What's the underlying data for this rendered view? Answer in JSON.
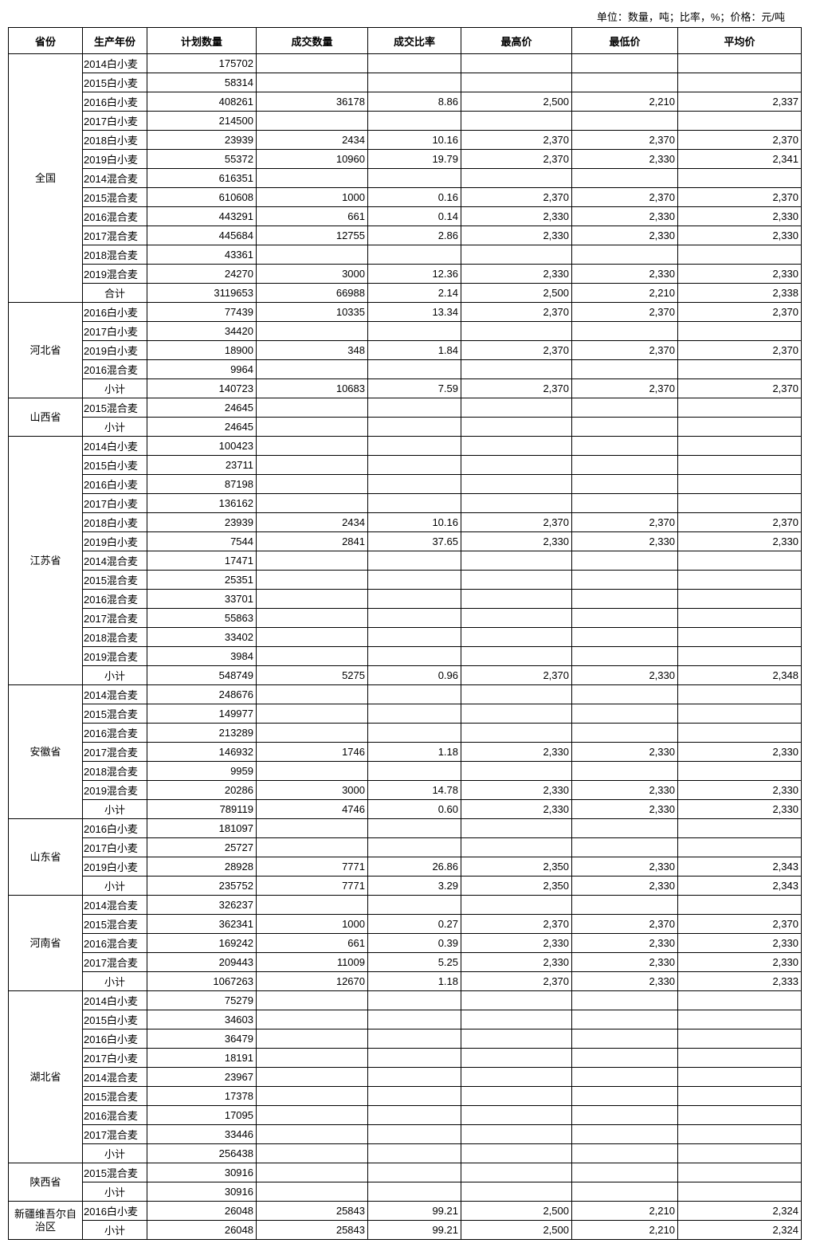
{
  "unit_note": "单位：数量，吨；比率，%；价格：元/吨",
  "headers": [
    "省份",
    "生产年份",
    "计划数量",
    "成交数量",
    "成交比率",
    "最高价",
    "最低价",
    "平均价"
  ],
  "groups": [
    {
      "province": "全国",
      "rows": [
        [
          "2014白小麦",
          "175702",
          "",
          "",
          "",
          "",
          ""
        ],
        [
          "2015白小麦",
          "58314",
          "",
          "",
          "",
          "",
          ""
        ],
        [
          "2016白小麦",
          "408261",
          "36178",
          "8.86",
          "2,500",
          "2,210",
          "2,337"
        ],
        [
          "2017白小麦",
          "214500",
          "",
          "",
          "",
          "",
          ""
        ],
        [
          "2018白小麦",
          "23939",
          "2434",
          "10.16",
          "2,370",
          "2,370",
          "2,370"
        ],
        [
          "2019白小麦",
          "55372",
          "10960",
          "19.79",
          "2,370",
          "2,330",
          "2,341"
        ],
        [
          "2014混合麦",
          "616351",
          "",
          "",
          "",
          "",
          ""
        ],
        [
          "2015混合麦",
          "610608",
          "1000",
          "0.16",
          "2,370",
          "2,370",
          "2,370"
        ],
        [
          "2016混合麦",
          "443291",
          "661",
          "0.14",
          "2,330",
          "2,330",
          "2,330"
        ],
        [
          "2017混合麦",
          "445684",
          "12755",
          "2.86",
          "2,330",
          "2,330",
          "2,330"
        ],
        [
          "2018混合麦",
          "43361",
          "",
          "",
          "",
          "",
          ""
        ],
        [
          "2019混合麦",
          "24270",
          "3000",
          "12.36",
          "2,330",
          "2,330",
          "2,330"
        ],
        [
          "合计",
          "3119653",
          "66988",
          "2.14",
          "2,500",
          "2,210",
          "2,338"
        ]
      ]
    },
    {
      "province": "河北省",
      "rows": [
        [
          "2016白小麦",
          "77439",
          "10335",
          "13.34",
          "2,370",
          "2,370",
          "2,370"
        ],
        [
          "2017白小麦",
          "34420",
          "",
          "",
          "",
          "",
          ""
        ],
        [
          "2019白小麦",
          "18900",
          "348",
          "1.84",
          "2,370",
          "2,370",
          "2,370"
        ],
        [
          "2016混合麦",
          "9964",
          "",
          "",
          "",
          "",
          ""
        ],
        [
          "小计",
          "140723",
          "10683",
          "7.59",
          "2,370",
          "2,370",
          "2,370"
        ]
      ]
    },
    {
      "province": "山西省",
      "rows": [
        [
          "2015混合麦",
          "24645",
          "",
          "",
          "",
          "",
          ""
        ],
        [
          "小计",
          "24645",
          "",
          "",
          "",
          "",
          ""
        ]
      ]
    },
    {
      "province": "江苏省",
      "rows": [
        [
          "2014白小麦",
          "100423",
          "",
          "",
          "",
          "",
          ""
        ],
        [
          "2015白小麦",
          "23711",
          "",
          "",
          "",
          "",
          ""
        ],
        [
          "2016白小麦",
          "87198",
          "",
          "",
          "",
          "",
          ""
        ],
        [
          "2017白小麦",
          "136162",
          "",
          "",
          "",
          "",
          ""
        ],
        [
          "2018白小麦",
          "23939",
          "2434",
          "10.16",
          "2,370",
          "2,370",
          "2,370"
        ],
        [
          "2019白小麦",
          "7544",
          "2841",
          "37.65",
          "2,330",
          "2,330",
          "2,330"
        ],
        [
          "2014混合麦",
          "17471",
          "",
          "",
          "",
          "",
          ""
        ],
        [
          "2015混合麦",
          "25351",
          "",
          "",
          "",
          "",
          ""
        ],
        [
          "2016混合麦",
          "33701",
          "",
          "",
          "",
          "",
          ""
        ],
        [
          "2017混合麦",
          "55863",
          "",
          "",
          "",
          "",
          ""
        ],
        [
          "2018混合麦",
          "33402",
          "",
          "",
          "",
          "",
          ""
        ],
        [
          "2019混合麦",
          "3984",
          "",
          "",
          "",
          "",
          ""
        ],
        [
          "小计",
          "548749",
          "5275",
          "0.96",
          "2,370",
          "2,330",
          "2,348"
        ]
      ]
    },
    {
      "province": "安徽省",
      "rows": [
        [
          "2014混合麦",
          "248676",
          "",
          "",
          "",
          "",
          ""
        ],
        [
          "2015混合麦",
          "149977",
          "",
          "",
          "",
          "",
          ""
        ],
        [
          "2016混合麦",
          "213289",
          "",
          "",
          "",
          "",
          ""
        ],
        [
          "2017混合麦",
          "146932",
          "1746",
          "1.18",
          "2,330",
          "2,330",
          "2,330"
        ],
        [
          "2018混合麦",
          "9959",
          "",
          "",
          "",
          "",
          ""
        ],
        [
          "2019混合麦",
          "20286",
          "3000",
          "14.78",
          "2,330",
          "2,330",
          "2,330"
        ],
        [
          "小计",
          "789119",
          "4746",
          "0.60",
          "2,330",
          "2,330",
          "2,330"
        ]
      ]
    },
    {
      "province": "山东省",
      "rows": [
        [
          "2016白小麦",
          "181097",
          "",
          "",
          "",
          "",
          ""
        ],
        [
          "2017白小麦",
          "25727",
          "",
          "",
          "",
          "",
          ""
        ],
        [
          "2019白小麦",
          "28928",
          "7771",
          "26.86",
          "2,350",
          "2,330",
          "2,343"
        ],
        [
          "小计",
          "235752",
          "7771",
          "3.29",
          "2,350",
          "2,330",
          "2,343"
        ]
      ]
    },
    {
      "province": "河南省",
      "rows": [
        [
          "2014混合麦",
          "326237",
          "",
          "",
          "",
          "",
          ""
        ],
        [
          "2015混合麦",
          "362341",
          "1000",
          "0.27",
          "2,370",
          "2,370",
          "2,370"
        ],
        [
          "2016混合麦",
          "169242",
          "661",
          "0.39",
          "2,330",
          "2,330",
          "2,330"
        ],
        [
          "2017混合麦",
          "209443",
          "11009",
          "5.25",
          "2,330",
          "2,330",
          "2,330"
        ],
        [
          "小计",
          "1067263",
          "12670",
          "1.18",
          "2,370",
          "2,330",
          "2,333"
        ]
      ]
    },
    {
      "province": "湖北省",
      "rows": [
        [
          "2014白小麦",
          "75279",
          "",
          "",
          "",
          "",
          ""
        ],
        [
          "2015白小麦",
          "34603",
          "",
          "",
          "",
          "",
          ""
        ],
        [
          "2016白小麦",
          "36479",
          "",
          "",
          "",
          "",
          ""
        ],
        [
          "2017白小麦",
          "18191",
          "",
          "",
          "",
          "",
          ""
        ],
        [
          "2014混合麦",
          "23967",
          "",
          "",
          "",
          "",
          ""
        ],
        [
          "2015混合麦",
          "17378",
          "",
          "",
          "",
          "",
          ""
        ],
        [
          "2016混合麦",
          "17095",
          "",
          "",
          "",
          "",
          ""
        ],
        [
          "2017混合麦",
          "33446",
          "",
          "",
          "",
          "",
          ""
        ],
        [
          "小计",
          "256438",
          "",
          "",
          "",
          "",
          ""
        ]
      ]
    },
    {
      "province": "陕西省",
      "rows": [
        [
          "2015混合麦",
          "30916",
          "",
          "",
          "",
          "",
          ""
        ],
        [
          "小计",
          "30916",
          "",
          "",
          "",
          "",
          ""
        ]
      ]
    },
    {
      "province": "新疆维吾尔自治区",
      "rows": [
        [
          "2016白小麦",
          "26048",
          "25843",
          "99.21",
          "2,500",
          "2,210",
          "2,324"
        ],
        [
          "小计",
          "26048",
          "25843",
          "99.21",
          "2,500",
          "2,210",
          "2,324"
        ]
      ]
    }
  ]
}
